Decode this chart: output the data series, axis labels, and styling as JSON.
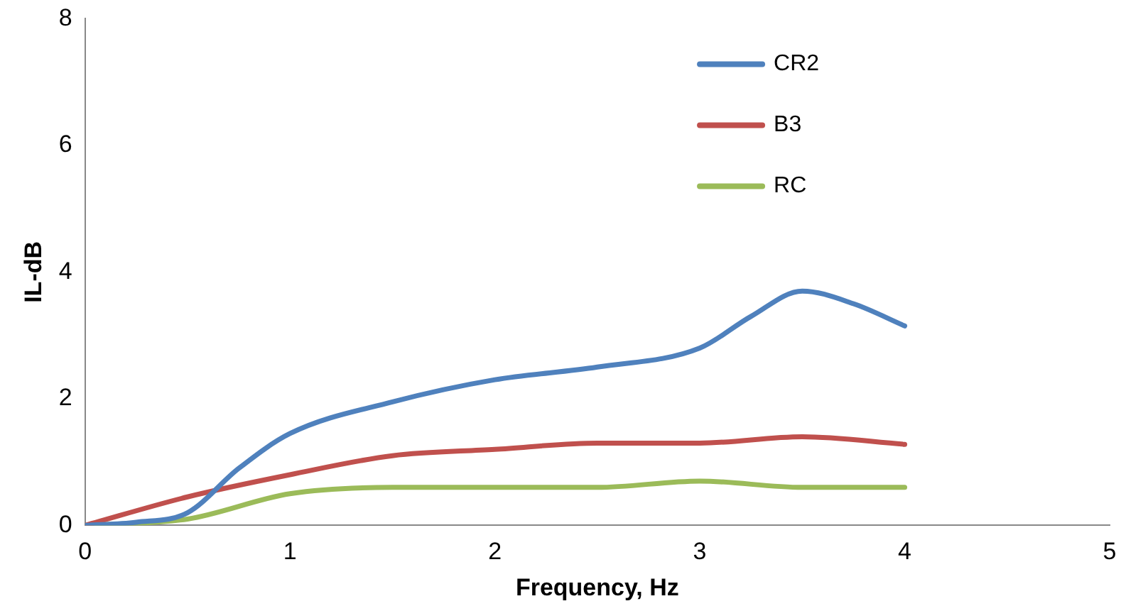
{
  "chart_data": {
    "type": "line",
    "xlabel": "Frequency, Hz",
    "ylabel": "IL-dB",
    "xlim": [
      0,
      5
    ],
    "xticks": [
      0,
      1,
      2,
      3,
      4,
      5
    ],
    "ylim": [
      0,
      8
    ],
    "yticks": [
      0,
      2,
      4,
      6,
      8
    ],
    "grid": false,
    "legend": "top right",
    "marker": "none",
    "line_style": "solid",
    "series": [
      {
        "name": "CR2",
        "color": "#4f81bd",
        "x": [
          0,
          0.25,
          0.5,
          0.75,
          1,
          1.5,
          2,
          2.5,
          3,
          3.25,
          3.5,
          3.75,
          4
        ],
        "values": [
          0,
          0.05,
          0.2,
          0.9,
          1.45,
          1.95,
          2.3,
          2.5,
          2.8,
          3.3,
          3.7,
          3.5,
          3.15
        ]
      },
      {
        "name": "B3",
        "color": "#c0504d",
        "x": [
          0,
          0.5,
          1,
          1.5,
          2,
          2.5,
          3,
          3.5,
          4
        ],
        "values": [
          0,
          0.45,
          0.8,
          1.1,
          1.2,
          1.3,
          1.3,
          1.4,
          1.28
        ]
      },
      {
        "name": "RC",
        "color": "#9bbb59",
        "x": [
          0,
          0.5,
          1,
          1.5,
          2,
          2.5,
          3,
          3.5,
          4
        ],
        "values": [
          0,
          0.1,
          0.5,
          0.6,
          0.6,
          0.6,
          0.7,
          0.6,
          0.6
        ]
      }
    ]
  }
}
